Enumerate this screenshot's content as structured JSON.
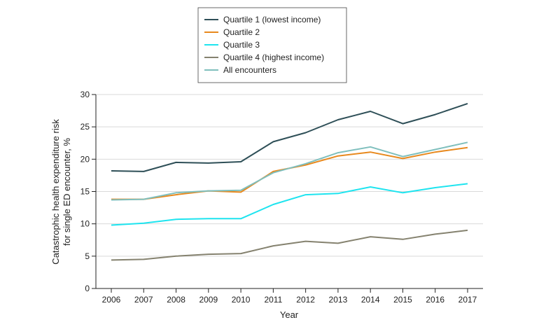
{
  "chart_data": {
    "type": "line",
    "title": "",
    "xlabel": "Year",
    "ylabel_line1": "Catastrophic health expenditure risk",
    "ylabel_line2": "for single ED encounter, %",
    "ylim": [
      0,
      30
    ],
    "yticks": [
      0,
      5,
      10,
      15,
      20,
      25,
      30
    ],
    "x": [
      2006,
      2007,
      2008,
      2009,
      2010,
      2011,
      2012,
      2013,
      2014,
      2015,
      2016,
      2017
    ],
    "grid": true,
    "legend_position": "top-center",
    "series": [
      {
        "name": "Quartile 1 (lowest income)",
        "color": "#2e4f57",
        "values": [
          18.2,
          18.1,
          19.5,
          19.4,
          19.6,
          22.7,
          24.1,
          26.1,
          27.4,
          25.5,
          26.9,
          28.6
        ]
      },
      {
        "name": "Quartile 2",
        "color": "#e8891e",
        "values": [
          13.8,
          13.8,
          14.5,
          15.1,
          14.9,
          18.1,
          19.1,
          20.5,
          21.1,
          20.1,
          21.1,
          21.8
        ]
      },
      {
        "name": "Quartile 3",
        "color": "#1ee4ef",
        "values": [
          9.8,
          10.1,
          10.7,
          10.8,
          10.8,
          13.0,
          14.5,
          14.7,
          15.7,
          14.8,
          15.6,
          16.2
        ]
      },
      {
        "name": "Quartile 4 (highest income)",
        "color": "#85826f",
        "values": [
          4.4,
          4.5,
          5.0,
          5.3,
          5.4,
          6.6,
          7.3,
          7.0,
          8.0,
          7.6,
          8.4,
          9.0
        ]
      },
      {
        "name": "All encounters",
        "color": "#7fbfbd",
        "values": [
          13.7,
          13.8,
          14.8,
          15.1,
          15.2,
          17.9,
          19.3,
          21.0,
          21.9,
          20.4,
          21.5,
          22.6
        ]
      }
    ]
  }
}
